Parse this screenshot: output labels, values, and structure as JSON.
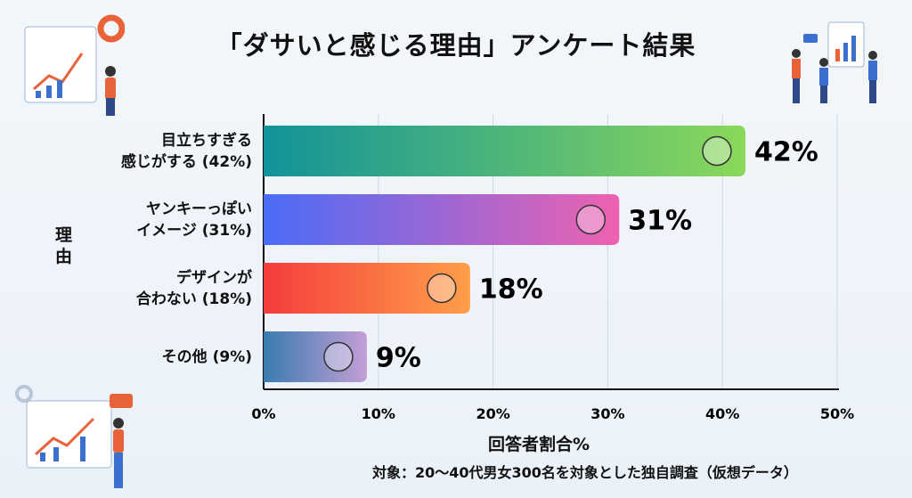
{
  "title": "「ダサいと感じる理由」アンケート結果",
  "note": "対象：20〜40代男女300名を対象とした独自調査（仮想データ）",
  "chart_data": {
    "type": "bar",
    "orientation": "horizontal",
    "title": "「ダサいと感じる理由」アンケート結果",
    "categories": [
      "目立ちすぎる\n感じがする (42%)",
      "ヤンキーっぽい\nイメージ (31%)",
      "デザインが\n合わない (18%)",
      "その他 (9%)"
    ],
    "values": [
      42,
      31,
      18,
      9
    ],
    "data_labels": [
      "42%",
      "31%",
      "18%",
      "9%"
    ],
    "xlabel": "回答者割合%",
    "ylabel": "理由",
    "xlim": [
      0,
      50
    ],
    "xticks": [
      "0%",
      "10%",
      "20%",
      "30%",
      "40%",
      "50%"
    ],
    "grid": true,
    "bar_gradients": [
      [
        "#12939a",
        "#8bd85a"
      ],
      [
        "#4a6cf7",
        "#ee62b0"
      ],
      [
        "#f53c3c",
        "#ff9f4a"
      ],
      [
        "#3a7bb0",
        "#c39fd6"
      ]
    ],
    "bar_icons": [
      "flashy-person-icon",
      "angry-face-icon",
      "puzzle-icon",
      "clothes-icon"
    ]
  }
}
